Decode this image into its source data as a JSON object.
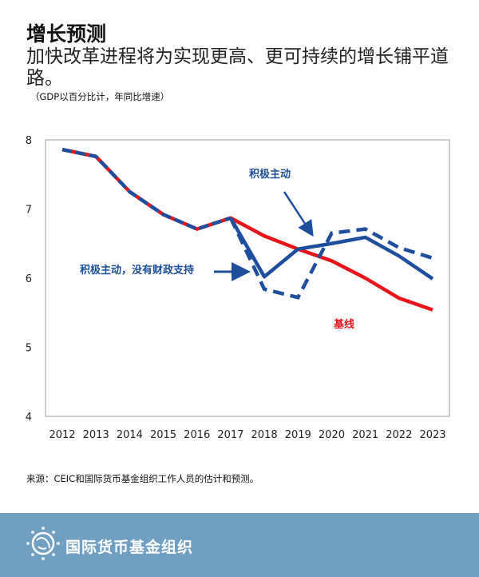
{
  "header": {
    "title": "增长预测",
    "subtitle": "加快改革进程将为实现更高、更可持续的增长铺平道路。",
    "units": "（GDP以百分比计，年同比增速）"
  },
  "chart_data": {
    "type": "line",
    "title": "增长预测",
    "ylabel": "GDP以百分比计，年同比增速",
    "xlabel": "",
    "ylim": [
      4,
      8
    ],
    "yticks": [
      4,
      5,
      6,
      7,
      8
    ],
    "x": [
      "2012",
      "2013",
      "2014",
      "2015",
      "2016",
      "2017",
      "2018",
      "2019",
      "2020",
      "2021",
      "2022",
      "2023"
    ],
    "grid": false,
    "series": [
      {
        "name": "基线",
        "color": "#e8141b",
        "style": "solid",
        "values": [
          7.86,
          7.76,
          7.25,
          6.92,
          6.71,
          6.87,
          6.61,
          6.42,
          6.25,
          6.0,
          5.71,
          5.54
        ]
      },
      {
        "name": "积极主动",
        "color": "#1f4e9c",
        "style": "solid",
        "values": [
          7.86,
          7.76,
          7.25,
          6.92,
          6.71,
          6.87,
          6.02,
          6.42,
          6.5,
          6.59,
          6.32,
          5.99
        ]
      },
      {
        "name": "积极主动，没有财政支持",
        "color": "#1f4e9c",
        "style": "dashed",
        "values": [
          7.86,
          7.76,
          7.25,
          6.92,
          6.71,
          6.87,
          5.84,
          5.72,
          6.65,
          6.71,
          6.44,
          6.29
        ]
      }
    ],
    "annotations": [
      {
        "text": "积极主动",
        "color": "#1f4e9c"
      },
      {
        "text": "积极主动，没有财政支持",
        "color": "#1f4e9c"
      },
      {
        "text": "基线",
        "color": "#e8141b"
      }
    ]
  },
  "source": "来源：CEIC和国际货币基金组织工作人员的估计和预测。",
  "footer": {
    "org_name": "国际货币基金组织",
    "logo": "IMF seal",
    "bg_color": "#719fc1"
  }
}
